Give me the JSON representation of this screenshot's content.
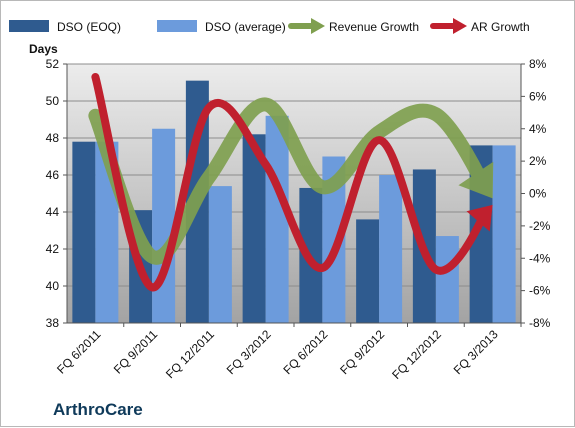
{
  "company_label": "ArthroCare",
  "colors": {
    "dso_eoq": "#2f5b8f",
    "dso_avg": "#6c9bdc",
    "revenue_growth": "#7f9f4f",
    "ar_growth": "#c0202e",
    "plot_bg_top": "#ececec",
    "plot_bg_bottom": "#a3a3a3"
  },
  "chart_data": {
    "type": "bar",
    "title": "",
    "ylabel": "Days",
    "y2label": "",
    "ylim": [
      38,
      52
    ],
    "yticks": [
      "38",
      "40",
      "42",
      "44",
      "46",
      "48",
      "50",
      "52"
    ],
    "y2lim": [
      -8,
      8
    ],
    "y2ticks": [
      "-8%",
      "-6%",
      "-4%",
      "-2%",
      "0%",
      "2%",
      "4%",
      "6%",
      "8%"
    ],
    "grid": true,
    "legend_position": "top",
    "categories": [
      "FQ 6/2011",
      "FQ 9/2011",
      "FQ 12/2011",
      "FQ 3/2012",
      "FQ 6/2012",
      "FQ 9/2012",
      "FQ 12/2012",
      "FQ 3/2013"
    ],
    "series": [
      {
        "name": "DSO (EOQ)",
        "kind": "bar",
        "axis": "left",
        "values": [
          47.8,
          44.1,
          51.1,
          48.2,
          45.3,
          43.6,
          46.3,
          47.6
        ]
      },
      {
        "name": "DSO (average)",
        "kind": "bar",
        "axis": "left",
        "values": [
          47.8,
          48.5,
          45.4,
          49.2,
          47.0,
          46.0,
          42.7,
          47.6
        ]
      },
      {
        "name": "Revenue Growth",
        "kind": "arrow-line",
        "axis": "right",
        "values": [
          4.8,
          -3.9,
          1.0,
          5.5,
          0.4,
          3.8,
          4.9,
          -0.3
        ]
      },
      {
        "name": "AR Growth",
        "kind": "arrow-line",
        "axis": "right",
        "values": [
          7.2,
          -5.8,
          5.3,
          1.8,
          -4.6,
          3.3,
          -4.7,
          -0.7
        ]
      }
    ]
  }
}
